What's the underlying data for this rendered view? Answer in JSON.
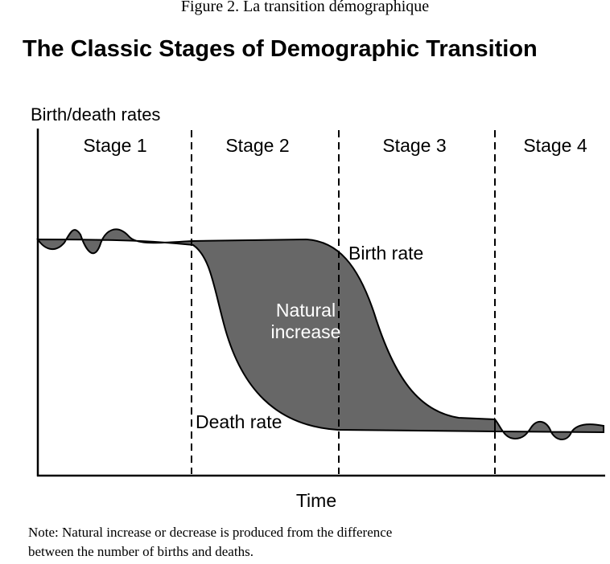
{
  "caption": "Figure 2. La transition démographique",
  "title": "The Classic Stages of Demographic Transition",
  "y_axis_label": "Birth/death rates",
  "x_axis_label": "Time",
  "stages": [
    "Stage 1",
    "Stage 2",
    "Stage 3",
    "Stage 4"
  ],
  "labels": {
    "birth_rate": "Birth rate",
    "death_rate": "Death rate",
    "natural_increase_line1": "Natural",
    "natural_increase_line2": "increase"
  },
  "note_lines": [
    "Note: Natural increase or decrease is produced from the difference",
    "between the number of births and deaths."
  ]
}
